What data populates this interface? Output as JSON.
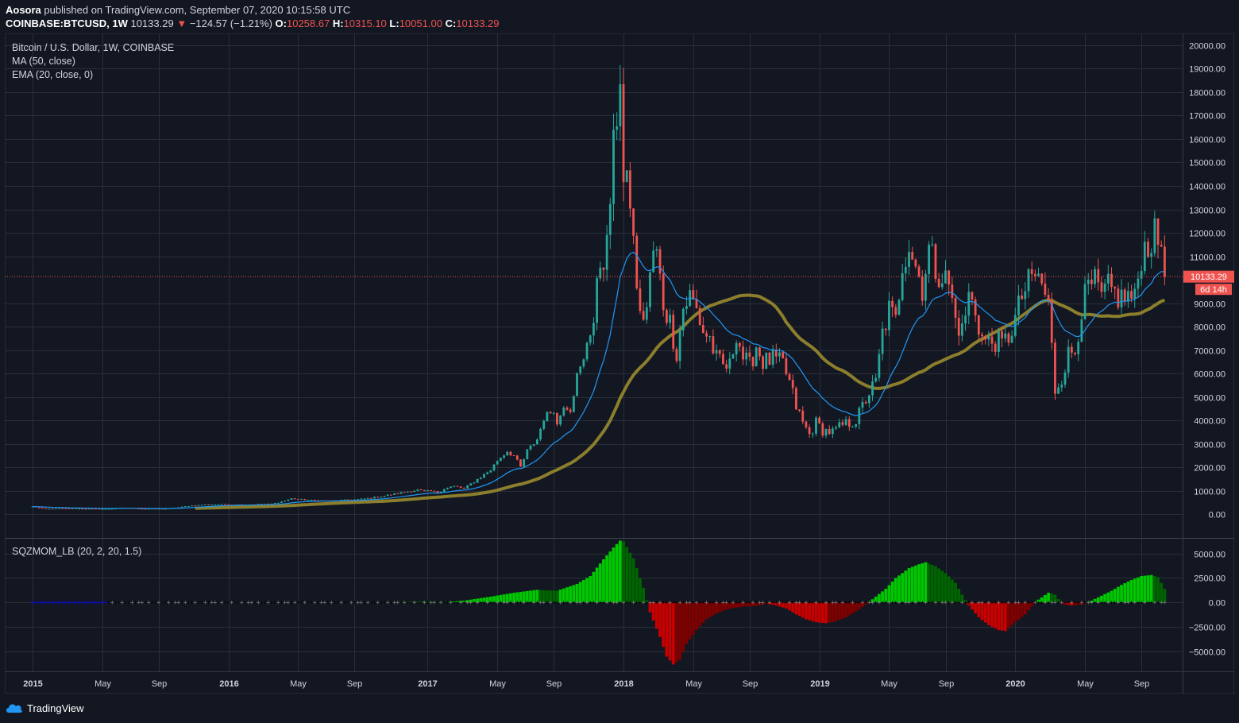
{
  "header": {
    "author": "Aosora",
    "published": "published on TradingView.com, September 07, 2020 10:15:58 UTC"
  },
  "ohlc": {
    "symbol": "COINBASE:BTCUSD, 1W",
    "last": "10133.29",
    "change": "−124.57 (−1.21%)",
    "o_label": "O:",
    "o": "10258.67",
    "h_label": "H:",
    "h": "10315.10",
    "l_label": "L:",
    "l": "10051.00",
    "c_label": "C:",
    "c": "10133.29"
  },
  "legend": {
    "title": "Bitcoin / U.S. Dollar, 1W, COINBASE",
    "ma": "MA (50, close)",
    "ema": "EMA (20, close, 0)",
    "osc": "SQZMOM_LB (20, 2, 20, 1.5)"
  },
  "price_label": {
    "value": "10133.29",
    "countdown": "6d 14h"
  },
  "footer": {
    "brand": "TradingView"
  },
  "colors": {
    "background": "#131722",
    "grid": "#2a2e39",
    "up": "#26a69a",
    "down": "#ef5350",
    "ma": "#8b7e2c",
    "ema": "#2196f3",
    "mom_up": "#00c800",
    "mom_up_fading": "#006400",
    "mom_down": "#c80000",
    "mom_down_fading": "#800000",
    "sqz_on": "#000000",
    "sqz_off": "#808080",
    "no_sqz": "#0000ff"
  },
  "chart_data": [
    {
      "type": "candlestick",
      "title": "Bitcoin / U.S. Dollar, 1W, COINBASE",
      "ylim": [
        -1000,
        20500
      ],
      "y_ticks": [
        "20000.00",
        "19000.00",
        "18000.00",
        "17000.00",
        "16000.00",
        "15000.00",
        "14000.00",
        "13000.00",
        "12000.00",
        "11000.00",
        "9000.00",
        "8000.00",
        "7000.00",
        "6000.00",
        "5000.00",
        "4000.00",
        "3000.00",
        "2000.00",
        "1000.00",
        "0.00"
      ],
      "x_ticks": [
        "2015",
        "May",
        "Sep",
        "2016",
        "May",
        "Sep",
        "2017",
        "May",
        "Sep",
        "2018",
        "May",
        "Sep",
        "2019",
        "May",
        "Sep",
        "2020",
        "May",
        "Sep"
      ],
      "x_tick_weeks": [
        0,
        21,
        38,
        59,
        80,
        97,
        119,
        140,
        157,
        178,
        199,
        216,
        237,
        258,
        275,
        296,
        317,
        334
      ],
      "price_series": {
        "name": "BTCUSD close (approx., weekly)",
        "anchors": [
          [
            0,
            330
          ],
          [
            4,
            230
          ],
          [
            8,
            260
          ],
          [
            12,
            250
          ],
          [
            18,
            240
          ],
          [
            22,
            230
          ],
          [
            28,
            280
          ],
          [
            34,
            240
          ],
          [
            40,
            240
          ],
          [
            44,
            300
          ],
          [
            48,
            380
          ],
          [
            52,
            420
          ],
          [
            57,
            430
          ],
          [
            62,
            420
          ],
          [
            67,
            430
          ],
          [
            72,
            450
          ],
          [
            76,
            580
          ],
          [
            78,
            680
          ],
          [
            80,
            650
          ],
          [
            84,
            600
          ],
          [
            90,
            580
          ],
          [
            94,
            610
          ],
          [
            98,
            640
          ],
          [
            104,
            740
          ],
          [
            110,
            900
          ],
          [
            114,
            1000
          ],
          [
            116,
            1050
          ],
          [
            118,
            980
          ],
          [
            120,
            1000
          ],
          [
            122,
            910
          ],
          [
            124,
            1100
          ],
          [
            127,
            1200
          ],
          [
            130,
            1100
          ],
          [
            134,
            1500
          ],
          [
            138,
            1900
          ],
          [
            140,
            2300
          ],
          [
            143,
            2700
          ],
          [
            145,
            2500
          ],
          [
            147,
            2000
          ],
          [
            149,
            2700
          ],
          [
            152,
            3200
          ],
          [
            154,
            4100
          ],
          [
            157,
            4500
          ],
          [
            158,
            3800
          ],
          [
            160,
            4700
          ],
          [
            162,
            4500
          ],
          [
            164,
            5900
          ],
          [
            166,
            6500
          ],
          [
            167,
            7400
          ],
          [
            169,
            8200
          ],
          [
            171,
            10800
          ],
          [
            173,
            11300
          ],
          [
            174,
            13500
          ],
          [
            176,
            17200
          ],
          [
            177,
            19000
          ],
          [
            178,
            14000
          ],
          [
            180,
            13500
          ],
          [
            181,
            11500
          ],
          [
            183,
            8300
          ],
          [
            185,
            8800
          ],
          [
            187,
            11200
          ],
          [
            188,
            11000
          ],
          [
            190,
            9000
          ],
          [
            192,
            8200
          ],
          [
            194,
            6900
          ],
          [
            196,
            8800
          ],
          [
            198,
            9300
          ],
          [
            200,
            8700
          ],
          [
            202,
            7800
          ],
          [
            204,
            7500
          ],
          [
            206,
            6600
          ],
          [
            208,
            6300
          ],
          [
            210,
            6300
          ],
          [
            212,
            7800
          ],
          [
            214,
            6700
          ],
          [
            216,
            6300
          ],
          [
            218,
            7200
          ],
          [
            220,
            6500
          ],
          [
            223,
            6600
          ],
          [
            226,
            6400
          ],
          [
            228,
            5600
          ],
          [
            230,
            4600
          ],
          [
            232,
            3900
          ],
          [
            234,
            3400
          ],
          [
            236,
            3900
          ],
          [
            238,
            3600
          ],
          [
            241,
            3500
          ],
          [
            244,
            3800
          ],
          [
            248,
            4000
          ],
          [
            250,
            4600
          ],
          [
            252,
            5200
          ],
          [
            254,
            5600
          ],
          [
            256,
            7700
          ],
          [
            258,
            8700
          ],
          [
            260,
            8200
          ],
          [
            262,
            10800
          ],
          [
            264,
            11600
          ],
          [
            266,
            10600
          ],
          [
            268,
            9700
          ],
          [
            270,
            11300
          ],
          [
            272,
            10500
          ],
          [
            274,
            10200
          ],
          [
            276,
            9800
          ],
          [
            278,
            8300
          ],
          [
            280,
            7800
          ],
          [
            282,
            9300
          ],
          [
            284,
            8700
          ],
          [
            286,
            7500
          ],
          [
            288,
            7300
          ],
          [
            290,
            7400
          ],
          [
            292,
            7200
          ],
          [
            294,
            7600
          ],
          [
            296,
            8300
          ],
          [
            298,
            9300
          ],
          [
            300,
            9800
          ],
          [
            302,
            10200
          ],
          [
            304,
            9800
          ],
          [
            306,
            8900
          ],
          [
            308,
            5300
          ],
          [
            310,
            5900
          ],
          [
            312,
            6800
          ],
          [
            314,
            7000
          ],
          [
            316,
            8800
          ],
          [
            318,
            9600
          ],
          [
            320,
            9800
          ],
          [
            322,
            9200
          ],
          [
            324,
            9600
          ],
          [
            326,
            9400
          ],
          [
            328,
            9200
          ],
          [
            330,
            9300
          ],
          [
            332,
            9100
          ],
          [
            334,
            11100
          ],
          [
            336,
            11600
          ],
          [
            338,
            11800
          ],
          [
            340,
            11500
          ],
          [
            341,
            10133
          ]
        ]
      },
      "series": [
        {
          "name": "MA (50, close)"
        },
        {
          "name": "EMA (20, close, 0)"
        }
      ],
      "last_value": 10133.29
    },
    {
      "type": "bar",
      "title": "SQZMOM_LB (20, 2, 20, 1.5)",
      "ylim": [
        -7000,
        6500
      ],
      "y_ticks": [
        "5000.00",
        "2500.00",
        "0.00",
        "−2500.00",
        "−5000.00"
      ],
      "momentum_anchors": [
        [
          0,
          0
        ],
        [
          38,
          0
        ],
        [
          60,
          8
        ],
        [
          90,
          10
        ],
        [
          110,
          40
        ],
        [
          118,
          80
        ],
        [
          125,
          60
        ],
        [
          130,
          200
        ],
        [
          138,
          600
        ],
        [
          145,
          1000
        ],
        [
          152,
          1300
        ],
        [
          158,
          1200
        ],
        [
          164,
          1900
        ],
        [
          168,
          2700
        ],
        [
          172,
          4400
        ],
        [
          175,
          5600
        ],
        [
          177,
          6300
        ],
        [
          178,
          6200
        ],
        [
          181,
          4500
        ],
        [
          184,
          1500
        ],
        [
          186,
          -1000
        ],
        [
          189,
          -3500
        ],
        [
          191,
          -5500
        ],
        [
          193,
          -6300
        ],
        [
          195,
          -5800
        ],
        [
          197,
          -4200
        ],
        [
          200,
          -2800
        ],
        [
          203,
          -1700
        ],
        [
          206,
          -1100
        ],
        [
          209,
          -700
        ],
        [
          212,
          -500
        ],
        [
          215,
          -400
        ],
        [
          218,
          -350
        ],
        [
          221,
          -100
        ],
        [
          224,
          -300
        ],
        [
          227,
          -600
        ],
        [
          230,
          -1200
        ],
        [
          233,
          -1700
        ],
        [
          236,
          -2000
        ],
        [
          239,
          -2100
        ],
        [
          242,
          -1900
        ],
        [
          245,
          -1500
        ],
        [
          248,
          -900
        ],
        [
          251,
          -200
        ],
        [
          254,
          600
        ],
        [
          257,
          1400
        ],
        [
          260,
          2500
        ],
        [
          264,
          3500
        ],
        [
          267,
          3900
        ],
        [
          269,
          4100
        ],
        [
          272,
          3700
        ],
        [
          275,
          3000
        ],
        [
          278,
          2000
        ],
        [
          280,
          800
        ],
        [
          282,
          -300
        ],
        [
          285,
          -1500
        ],
        [
          288,
          -2300
        ],
        [
          291,
          -2800
        ],
        [
          293,
          -2900
        ],
        [
          296,
          -2000
        ],
        [
          299,
          -1200
        ],
        [
          301,
          -400
        ],
        [
          303,
          300
        ],
        [
          306,
          1000
        ],
        [
          308,
          800
        ],
        [
          310,
          -100
        ],
        [
          313,
          -300
        ],
        [
          316,
          -200
        ],
        [
          319,
          200
        ],
        [
          322,
          700
        ],
        [
          325,
          1200
        ],
        [
          328,
          1800
        ],
        [
          331,
          2300
        ],
        [
          334,
          2700
        ],
        [
          337,
          2800
        ],
        [
          339,
          2600
        ],
        [
          341,
          1400
        ]
      ]
    }
  ]
}
